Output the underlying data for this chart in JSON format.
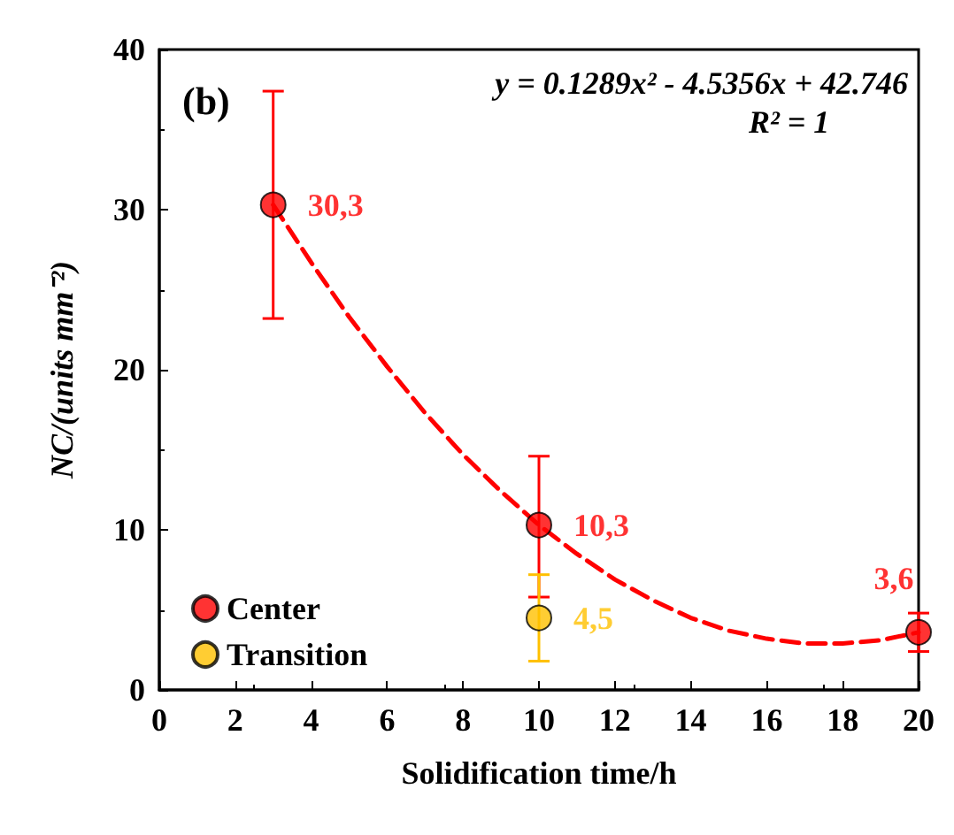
{
  "chart_data": {
    "type": "scatter",
    "xlabel": "Solidification time/h",
    "ylabel": "NC/(units mm⁻²)",
    "annotations": [
      "(b)",
      "y = 0.1289x² - 4.5356x + 42.746",
      "R² = 1"
    ],
    "xlim": [
      0,
      20
    ],
    "xticks": [
      0,
      2,
      4,
      6,
      8,
      10,
      12,
      14,
      16,
      18,
      20
    ],
    "ylim": [
      0,
      40
    ],
    "yticks": [
      0,
      10,
      20,
      30,
      40
    ],
    "legend": "bottom left",
    "marker": "circle",
    "grid": false,
    "series": [
      {
        "type": "line",
        "marker": "none",
        "line_style": "dashed",
        "color": "#ff0000",
        "x": [
          3,
          4,
          5,
          6,
          7,
          8,
          9,
          10,
          11,
          12,
          13,
          14,
          15,
          16,
          17,
          18,
          19,
          20
        ],
        "values": [
          30.3,
          26.7,
          23.3,
          20.2,
          17.3,
          14.7,
          12.4,
          10.3,
          8.5,
          6.9,
          5.6,
          4.5,
          3.7,
          3.2,
          2.9,
          2.9,
          3.1,
          3.6
        ]
      },
      {
        "name": "Center",
        "color": "#ff0000",
        "x": [
          3,
          10,
          20
        ],
        "values": [
          30.3,
          10.3,
          3.6
        ],
        "errors": [
          [
            23.2,
            37.4
          ],
          [
            5.8,
            14.6
          ],
          [
            2.4,
            4.8
          ]
        ],
        "value_labels": [
          "30,3",
          "10,3",
          "3,6"
        ]
      },
      {
        "name": "Transition",
        "color": "#ffc000",
        "x": [
          10
        ],
        "values": [
          4.5
        ],
        "errors": [
          [
            1.8,
            7.2
          ]
        ],
        "value_labels": [
          "4,5"
        ]
      }
    ]
  }
}
